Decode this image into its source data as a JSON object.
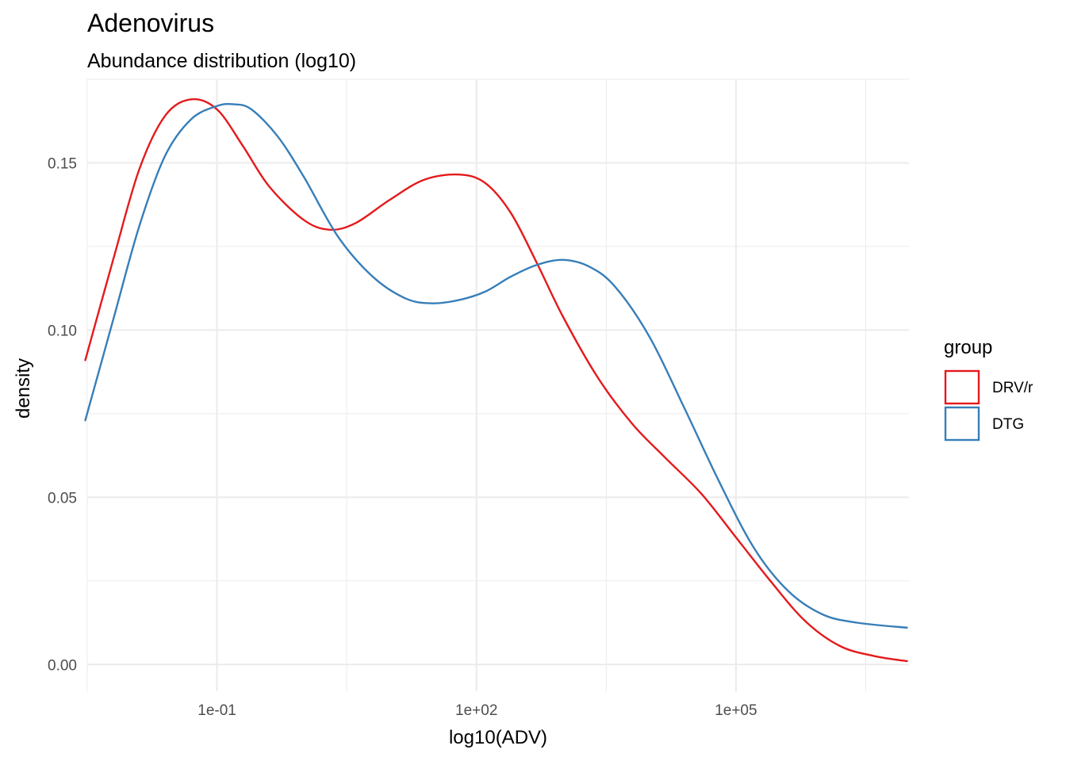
{
  "chart_data": {
    "type": "line",
    "title": "Adenovirus",
    "subtitle": "Abundance distribution (log10)",
    "xlabel": "log10(ADV)",
    "ylabel": "density",
    "x_scale": "log10",
    "xlim": [
      0.001,
      3000000
    ],
    "ylim": [
      -0.008,
      0.175
    ],
    "x_ticks": [
      {
        "value": 0.1,
        "label": "1e-01"
      },
      {
        "value": 100,
        "label": "1e+02"
      },
      {
        "value": 100000,
        "label": "1e+05"
      }
    ],
    "y_ticks": [
      {
        "value": 0.0,
        "label": "0.00"
      },
      {
        "value": 0.05,
        "label": "0.05"
      },
      {
        "value": 0.1,
        "label": "0.10"
      },
      {
        "value": 0.15,
        "label": "0.15"
      }
    ],
    "grid": true,
    "legend": {
      "title": "group",
      "position": "right"
    },
    "series": [
      {
        "name": "DRV/r",
        "color": "#e41a1c",
        "points": [
          [
            0.003,
            0.091
          ],
          [
            0.0063,
            0.121
          ],
          [
            0.0126,
            0.148
          ],
          [
            0.025,
            0.164
          ],
          [
            0.05,
            0.169
          ],
          [
            0.1,
            0.166
          ],
          [
            0.2,
            0.155
          ],
          [
            0.4,
            0.143
          ],
          [
            1,
            0.133
          ],
          [
            2,
            0.13
          ],
          [
            4,
            0.132
          ],
          [
            10,
            0.139
          ],
          [
            25,
            0.145
          ],
          [
            63,
            0.1465
          ],
          [
            126,
            0.144
          ],
          [
            250,
            0.135
          ],
          [
            500,
            0.12
          ],
          [
            1000,
            0.104
          ],
          [
            2500,
            0.086
          ],
          [
            6300,
            0.072
          ],
          [
            15000,
            0.062
          ],
          [
            40000,
            0.051
          ],
          [
            100000,
            0.038
          ],
          [
            250000,
            0.025
          ],
          [
            630000,
            0.013
          ],
          [
            1600000,
            0.0055
          ],
          [
            4000000,
            0.0025
          ],
          [
            9500000,
            0.001
          ]
        ]
      },
      {
        "name": "DTG",
        "color": "#377eb8",
        "points": [
          [
            0.003,
            0.073
          ],
          [
            0.0063,
            0.103
          ],
          [
            0.0126,
            0.131
          ],
          [
            0.025,
            0.152
          ],
          [
            0.05,
            0.163
          ],
          [
            0.1,
            0.167
          ],
          [
            0.158,
            0.1675
          ],
          [
            0.25,
            0.166
          ],
          [
            0.5,
            0.158
          ],
          [
            1,
            0.146
          ],
          [
            2.5,
            0.128
          ],
          [
            6.3,
            0.116
          ],
          [
            15,
            0.1095
          ],
          [
            30,
            0.108
          ],
          [
            63,
            0.109
          ],
          [
            126,
            0.1115
          ],
          [
            250,
            0.116
          ],
          [
            500,
            0.1195
          ],
          [
            1000,
            0.121
          ],
          [
            2000,
            0.119
          ],
          [
            4000,
            0.113
          ],
          [
            10000,
            0.098
          ],
          [
            25000,
            0.077
          ],
          [
            63000,
            0.055
          ],
          [
            160000,
            0.035
          ],
          [
            400000,
            0.022
          ],
          [
            1000000,
            0.015
          ],
          [
            2500000,
            0.0125
          ],
          [
            9500000,
            0.011
          ]
        ]
      }
    ]
  }
}
